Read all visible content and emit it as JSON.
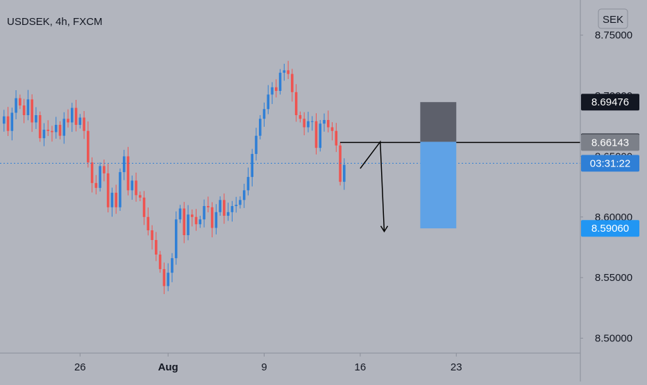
{
  "symbol_title": "USDSEK, 4h, FXCM",
  "currency_button": "SEK",
  "colors": {
    "background": "#b2b5be",
    "up": "#2f7fd6",
    "down": "#ef5350",
    "axis_text": "#131722",
    "last_price": "#2f7fd6",
    "stop_zone": "#5d606b",
    "target_zone": "#5fa2e6",
    "target_label": "#2196f3"
  },
  "chart_data": {
    "type": "candlestick",
    "title": "USDSEK, 4h, FXCM",
    "y_ticks": [
      8.5,
      8.55,
      8.6,
      8.65,
      8.7,
      8.75
    ],
    "y_tick_labels": [
      "8.50000",
      "8.55000",
      "8.60000",
      "8.65000",
      "8.70000",
      "8.75000"
    ],
    "ylim": [
      8.4877,
      8.779
    ],
    "x_ticks": [
      {
        "label": "26",
        "index": 20
      },
      {
        "label": "Aug",
        "index": 42
      },
      {
        "label": "9",
        "index": 66
      },
      {
        "label": "16",
        "index": 90
      },
      {
        "label": "23",
        "index": 114
      }
    ],
    "x_range": [
      0,
      145
    ],
    "candles_close_path": [
      8.677,
      8.683,
      8.671,
      8.686,
      8.698,
      8.692,
      8.684,
      8.697,
      8.678,
      8.684,
      8.665,
      8.672,
      8.671,
      8.67,
      8.676,
      8.667,
      8.681,
      8.678,
      8.69,
      8.676,
      8.682,
      8.671,
      8.645,
      8.628,
      8.624,
      8.642,
      8.636,
      8.608,
      8.62,
      8.608,
      8.637,
      8.65,
      8.622,
      8.63,
      8.618,
      8.616,
      8.6,
      8.589,
      8.581,
      8.569,
      8.557,
      8.543,
      8.554,
      8.566,
      8.598,
      8.607,
      8.585,
      8.602,
      8.6,
      8.594,
      8.598,
      8.609,
      8.608,
      8.591,
      8.604,
      8.614,
      8.601,
      8.604,
      8.609,
      8.61,
      8.614,
      8.622,
      8.633,
      8.652,
      8.667,
      8.681,
      8.689,
      8.701,
      8.707,
      8.704,
      8.719,
      8.721,
      8.718,
      8.703,
      8.684,
      8.681,
      8.674,
      8.679,
      8.679,
      8.657,
      8.677,
      8.68,
      8.674,
      8.671,
      8.659,
      8.629,
      8.643
    ],
    "price_labels": [
      {
        "value": 8.69476,
        "label": "8.69476",
        "kind": "stop"
      },
      {
        "value": 8.662,
        "label": "8.66200",
        "kind": "entry"
      },
      {
        "value": 8.66143,
        "label": "8.66143",
        "kind": "level"
      },
      {
        "value": 8.6443,
        "label": "03:31:22",
        "kind": "countdown"
      },
      {
        "value": 8.5906,
        "label": "8.59060",
        "kind": "target"
      }
    ],
    "last_price": 8.6443,
    "horizontal_line": {
      "value": 8.66143,
      "from_index": 85
    },
    "position": {
      "entry": 8.662,
      "stop": 8.69476,
      "target": 8.5906,
      "from_index": 105,
      "to_index": 114
    },
    "projection": {
      "points": [
        {
          "index": 90,
          "value": 8.64
        },
        {
          "index": 95,
          "value": 8.662
        },
        {
          "index": 96,
          "value": 8.588
        }
      ]
    },
    "grid": false
  }
}
